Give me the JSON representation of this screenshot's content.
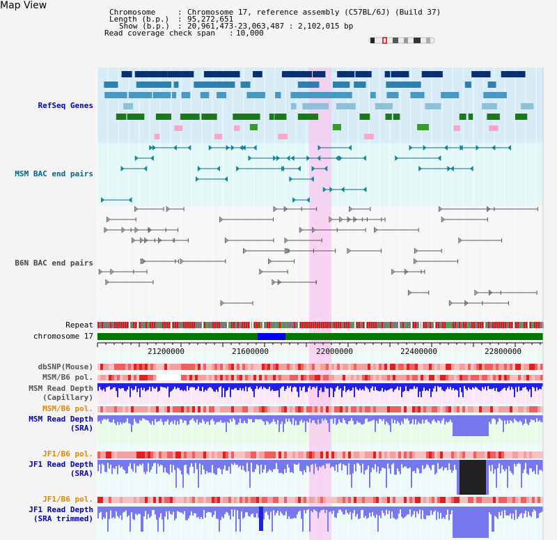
{
  "title": "Map View",
  "header": {
    "chromosome_label": "Chromosome",
    "chromosome_value": "Chromosome 17, reference assembly (C57BL/6J) (Build 37)",
    "length_label": "Length (b.p.)",
    "length_value": "95,272,651",
    "show_label": "Show (b.p.)",
    "show_value": "20,961,473-23,063,487 : 2,102,015 bp",
    "coverage_label": "Read coverage check span",
    "coverage_value": "10,000"
  },
  "tracks": {
    "refseq": "RefSeq Genes",
    "msm_bac": "MSM BAC end pairs",
    "b6n_bac": "B6N BAC end pairs",
    "repeat": "Repeat",
    "chromosome": "chromosome 17",
    "dbsnp": "dbSNP(Mouse)",
    "msm_b6_pol_1": "MSM/B6 pol.",
    "msm_read_depth_cap_1": "MSM Read Depth",
    "msm_read_depth_cap_2": "(Capillary)",
    "msm_b6_pol_2": "MSM/B6 pol.",
    "msm_read_depth_sra_1": "MSM Read Depth",
    "msm_read_depth_sra_2": "(SRA)",
    "jf1_b6_pol_1": "JF1/B6 pol.",
    "jf1_read_depth_sra_1": "JF1 Read Depth",
    "jf1_read_depth_sra_2": "(SRA)",
    "jf1_b6_pol_2": "JF1/B6 pol.",
    "jf1_read_depth_trim_1": "JF1 Read Depth",
    "jf1_read_depth_trim_2": "(SRA trimmed)"
  },
  "ruler": {
    "ticks": [
      "21200000",
      "21600000",
      "22000000",
      "22400000",
      "22800000"
    ]
  },
  "colors": {
    "refseq_bg": "#d8ecf8",
    "msm_bac_bg": "#e4f7f7",
    "b6n_bg": "#f4f4f4",
    "highlight": "#f8c8f0",
    "chromosome_green": "#007700",
    "chromosome_blue": "#0000ee",
    "depth_blue": "#2222dd",
    "light_blue": "#7777ee",
    "label_blue": "#0000aa",
    "label_orange": "#dd8800"
  }
}
